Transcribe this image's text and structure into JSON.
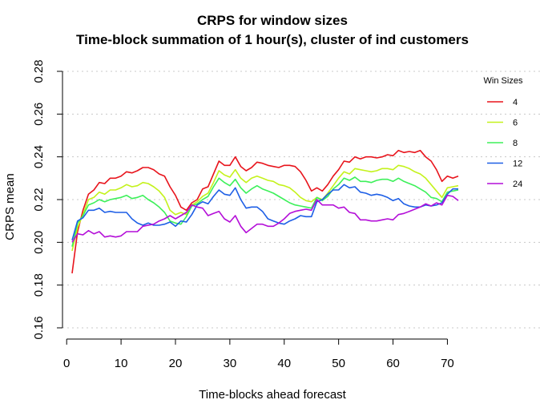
{
  "chart_data": {
    "type": "line",
    "title": "CRPS for window sizes",
    "subtitle": "Time-block summation of 1 hour(s), cluster of ind customers",
    "xlabel": "Time-blocks ahead forecast",
    "ylabel": "CRPS mean",
    "xlim": [
      1,
      72
    ],
    "ylim": [
      0.16,
      0.28
    ],
    "x_ticks": [
      0,
      10,
      20,
      30,
      40,
      50,
      60,
      70
    ],
    "y_ticks": [
      0.16,
      0.18,
      0.2,
      0.22,
      0.24,
      0.26,
      0.28
    ],
    "grid": "horizontal dotted",
    "legend": {
      "title": "Win Sizes",
      "position": "top-right"
    },
    "x": [
      1,
      2,
      3,
      4,
      5,
      6,
      7,
      8,
      9,
      10,
      11,
      12,
      13,
      14,
      15,
      16,
      17,
      18,
      19,
      20,
      21,
      22,
      23,
      24,
      25,
      26,
      27,
      28,
      29,
      30,
      31,
      32,
      33,
      34,
      35,
      36,
      37,
      38,
      39,
      40,
      41,
      42,
      43,
      44,
      45,
      46,
      47,
      48,
      49,
      50,
      51,
      52,
      53,
      54,
      55,
      56,
      57,
      58,
      59,
      60,
      61,
      62,
      63,
      64,
      65,
      66,
      67,
      68,
      69,
      70,
      71,
      72
    ],
    "series": [
      {
        "name": "4",
        "color": "#e8141c",
        "values": [
          0.1855,
          0.205,
          0.215,
          0.2225,
          0.2245,
          0.228,
          0.2275,
          0.23,
          0.23,
          0.231,
          0.233,
          0.2325,
          0.2335,
          0.235,
          0.235,
          0.234,
          0.232,
          0.231,
          0.226,
          0.222,
          0.2165,
          0.215,
          0.2185,
          0.22,
          0.225,
          0.226,
          0.232,
          0.238,
          0.236,
          0.236,
          0.24,
          0.2355,
          0.2335,
          0.235,
          0.2375,
          0.237,
          0.236,
          0.2355,
          0.235,
          0.236,
          0.236,
          0.2355,
          0.233,
          0.229,
          0.224,
          0.2255,
          0.224,
          0.227,
          0.231,
          0.234,
          0.238,
          0.2375,
          0.24,
          0.239,
          0.24,
          0.24,
          0.2395,
          0.24,
          0.241,
          0.2405,
          0.243,
          0.242,
          0.2425,
          0.242,
          0.243,
          0.24,
          0.238,
          0.234,
          0.2285,
          0.231,
          0.23,
          0.231
        ]
      },
      {
        "name": "6",
        "color": "#c4f21c",
        "values": [
          0.196,
          0.207,
          0.213,
          0.22,
          0.221,
          0.2235,
          0.2225,
          0.2245,
          0.2245,
          0.2255,
          0.227,
          0.226,
          0.2265,
          0.228,
          0.2275,
          0.226,
          0.224,
          0.221,
          0.215,
          0.213,
          0.214,
          0.213,
          0.2175,
          0.219,
          0.2215,
          0.223,
          0.228,
          0.2335,
          0.2315,
          0.2305,
          0.234,
          0.23,
          0.228,
          0.23,
          0.231,
          0.23,
          0.229,
          0.2285,
          0.227,
          0.2265,
          0.2255,
          0.2235,
          0.221,
          0.2195,
          0.219,
          0.221,
          0.22,
          0.223,
          0.2265,
          0.23,
          0.233,
          0.232,
          0.2345,
          0.234,
          0.2335,
          0.233,
          0.2335,
          0.2345,
          0.2345,
          0.234,
          0.236,
          0.2355,
          0.2345,
          0.233,
          0.232,
          0.23,
          0.227,
          0.224,
          0.221,
          0.2255,
          0.226,
          0.2265
        ]
      },
      {
        "name": "8",
        "color": "#3df05a",
        "values": [
          0.198,
          0.209,
          0.2125,
          0.2175,
          0.2185,
          0.22,
          0.219,
          0.22,
          0.2205,
          0.221,
          0.222,
          0.2205,
          0.221,
          0.222,
          0.22,
          0.2185,
          0.2165,
          0.214,
          0.21,
          0.209,
          0.2085,
          0.212,
          0.217,
          0.218,
          0.22,
          0.2215,
          0.226,
          0.23,
          0.228,
          0.2265,
          0.2295,
          0.2255,
          0.223,
          0.225,
          0.2265,
          0.225,
          0.224,
          0.223,
          0.2215,
          0.22,
          0.2185,
          0.2175,
          0.217,
          0.2165,
          0.216,
          0.221,
          0.2195,
          0.2215,
          0.225,
          0.227,
          0.23,
          0.229,
          0.2305,
          0.2285,
          0.2285,
          0.228,
          0.229,
          0.2295,
          0.2295,
          0.2285,
          0.23,
          0.2285,
          0.2275,
          0.2265,
          0.225,
          0.2235,
          0.221,
          0.2205,
          0.219,
          0.2235,
          0.224,
          0.2245
        ]
      },
      {
        "name": "12",
        "color": "#1e5fe6",
        "values": [
          0.201,
          0.21,
          0.2115,
          0.215,
          0.215,
          0.216,
          0.214,
          0.2145,
          0.214,
          0.214,
          0.214,
          0.211,
          0.209,
          0.208,
          0.209,
          0.208,
          0.208,
          0.2085,
          0.2095,
          0.2075,
          0.21,
          0.2095,
          0.213,
          0.2175,
          0.219,
          0.218,
          0.2215,
          0.2245,
          0.2225,
          0.222,
          0.2255,
          0.22,
          0.216,
          0.2165,
          0.2165,
          0.2145,
          0.211,
          0.21,
          0.209,
          0.2085,
          0.21,
          0.211,
          0.2125,
          0.212,
          0.212,
          0.219,
          0.22,
          0.2225,
          0.2245,
          0.2245,
          0.227,
          0.2255,
          0.226,
          0.2235,
          0.223,
          0.222,
          0.2225,
          0.222,
          0.221,
          0.2195,
          0.2205,
          0.218,
          0.217,
          0.2165,
          0.2165,
          0.2175,
          0.217,
          0.2175,
          0.2185,
          0.2225,
          0.225,
          0.225
        ]
      },
      {
        "name": "24",
        "color": "#b40fd8",
        "values": [
          0.2,
          0.204,
          0.2035,
          0.2055,
          0.204,
          0.205,
          0.2025,
          0.203,
          0.2025,
          0.203,
          0.205,
          0.205,
          0.205,
          0.2075,
          0.208,
          0.2085,
          0.21,
          0.211,
          0.2125,
          0.211,
          0.2125,
          0.214,
          0.2175,
          0.2165,
          0.216,
          0.2125,
          0.2135,
          0.2145,
          0.211,
          0.2095,
          0.2125,
          0.2075,
          0.2045,
          0.2065,
          0.2085,
          0.2085,
          0.2075,
          0.2075,
          0.209,
          0.211,
          0.2135,
          0.2145,
          0.215,
          0.2155,
          0.215,
          0.22,
          0.2175,
          0.2175,
          0.2175,
          0.216,
          0.2165,
          0.214,
          0.2135,
          0.2105,
          0.2105,
          0.21,
          0.21,
          0.2105,
          0.211,
          0.2105,
          0.213,
          0.2135,
          0.2145,
          0.2155,
          0.2165,
          0.218,
          0.217,
          0.2185,
          0.2175,
          0.222,
          0.2215,
          0.2195
        ]
      }
    ]
  }
}
